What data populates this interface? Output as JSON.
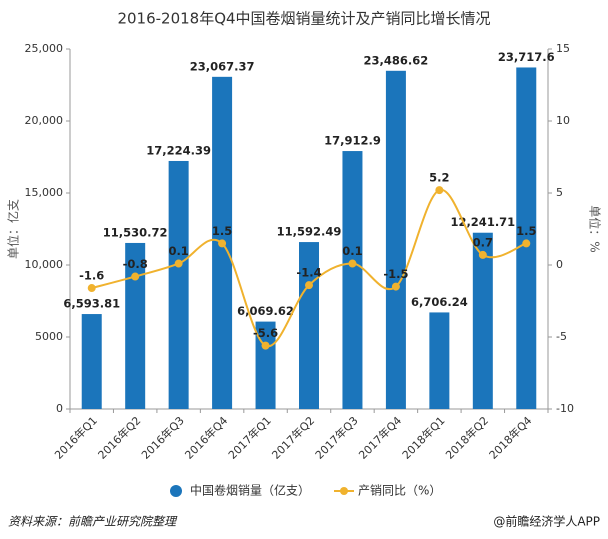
{
  "chart_data": {
    "type": "bar-line",
    "title": "2016-2018年Q4中国卷烟销量统计及产销同比增长情况",
    "y_label": "单位：亿支",
    "y2_label": "单位：%",
    "categories": [
      "2016年Q1",
      "2016年Q2",
      "2016年Q3",
      "2016年Q4",
      "2017年Q1",
      "2017年Q2",
      "2017年Q3",
      "2017年Q4",
      "2018年Q1",
      "2018年Q2",
      "2018年Q4"
    ],
    "series": [
      {
        "name": "中国卷烟销量（亿支）",
        "color": "#1b75bb",
        "type": "bar",
        "values": [
          6593.81,
          11530.72,
          17224.39,
          23067.37,
          6069.62,
          11592.49,
          17912.9,
          23486.62,
          6706.24,
          12241.71,
          23717.6
        ],
        "value_labels": [
          "6,593.81",
          "11,530.72",
          "17,224.39",
          "23,067.37",
          "6,069.62",
          "11,592.49",
          "17,912.9",
          "23,486.62",
          "6,706.24",
          "12,241.71",
          "23,717.6"
        ]
      },
      {
        "name": "产销同比（%）",
        "color": "#f0b22e",
        "type": "line",
        "axis": "y2",
        "values": [
          -1.6,
          -0.8,
          0.1,
          1.5,
          -5.6,
          -1.4,
          0.1,
          -1.5,
          5.2,
          0.7,
          1.5
        ]
      }
    ],
    "ylim": [
      0,
      25000
    ],
    "yticks": [
      0,
      5000,
      {
        "value": 10000,
        "label": "10,000"
      },
      {
        "value": 15000,
        "label": "15,000"
      },
      {
        "value": 20000,
        "label": "20,000"
      },
      {
        "value": 25000,
        "label": "25,000"
      }
    ],
    "y2lim": [
      -10,
      15
    ],
    "y2ticks": [
      -10,
      -5,
      0,
      5,
      10,
      15
    ],
    "grid": false,
    "legend": "bottom",
    "source": "资料来源：前瞻产业研究院整理",
    "credit": "@前瞻经济学人APP"
  }
}
